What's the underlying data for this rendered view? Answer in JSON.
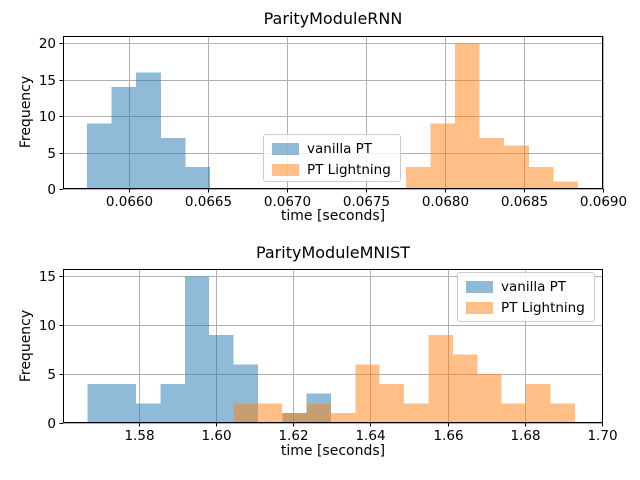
{
  "figure": {
    "background_color": "#ffffff",
    "text_color": "#000000",
    "grid_color": "#b0b0b0",
    "spine_color": "#000000",
    "fill_alpha": 0.5
  },
  "chart_data": [
    {
      "type": "histogram",
      "title": "ParityModuleRNN",
      "xlabel": "time [seconds]",
      "ylabel": "Frequency",
      "xlim": [
        0.06558,
        0.069
      ],
      "ylim": [
        0,
        21
      ],
      "xticks": [
        0.066,
        0.0665,
        0.067,
        0.0675,
        0.068,
        0.0685,
        0.069
      ],
      "xtick_labels": [
        "0.0660",
        "0.0665",
        "0.0670",
        "0.0675",
        "0.0680",
        "0.0685",
        "0.0690"
      ],
      "yticks": [
        0,
        5,
        10,
        15,
        20
      ],
      "ytick_labels": [
        "0",
        "5",
        "10",
        "15",
        "20"
      ],
      "grid": true,
      "legend": {
        "position": "center",
        "entries": [
          "vanilla PT",
          "PT Lightning"
        ]
      },
      "series": [
        {
          "name": "vanilla PT",
          "color": "#1f77b4",
          "bin_start": 0.065732,
          "bin_width": 0.0001558,
          "counts": [
            9,
            14,
            16,
            7,
            3
          ]
        },
        {
          "name": "PT Lightning",
          "color": "#ff7f0e",
          "bin_start": 0.067751,
          "bin_width": 0.0001558,
          "counts": [
            3,
            9,
            20,
            7,
            6,
            3,
            1
          ]
        }
      ]
    },
    {
      "type": "histogram",
      "title": "ParityModuleMNIST",
      "xlabel": "time [seconds]",
      "ylabel": "Frequency",
      "xlim": [
        1.5603,
        1.7003
      ],
      "ylim": [
        0,
        15.75
      ],
      "xticks": [
        1.58,
        1.6,
        1.62,
        1.64,
        1.66,
        1.68,
        1.7
      ],
      "xtick_labels": [
        "1.58",
        "1.60",
        "1.62",
        "1.64",
        "1.66",
        "1.68",
        "1.70"
      ],
      "yticks": [
        0,
        5,
        10,
        15
      ],
      "ytick_labels": [
        "0",
        "5",
        "10",
        "15"
      ],
      "grid": true,
      "legend": {
        "position": "upper right",
        "entries": [
          "vanilla PT",
          "PT Lightning"
        ]
      },
      "series": [
        {
          "name": "vanilla PT",
          "color": "#1f77b4",
          "bin_start": 1.5666,
          "bin_width": 0.00632,
          "counts": [
            4,
            4,
            2,
            4,
            15,
            9,
            6,
            0,
            1,
            3
          ]
        },
        {
          "name": "PT Lightning",
          "color": "#ff7f0e",
          "bin_start": 1.6045,
          "bin_width": 0.00632,
          "counts": [
            2,
            2,
            1,
            2,
            1,
            6,
            4,
            2,
            9,
            7,
            5,
            2,
            4,
            2
          ]
        }
      ]
    }
  ]
}
